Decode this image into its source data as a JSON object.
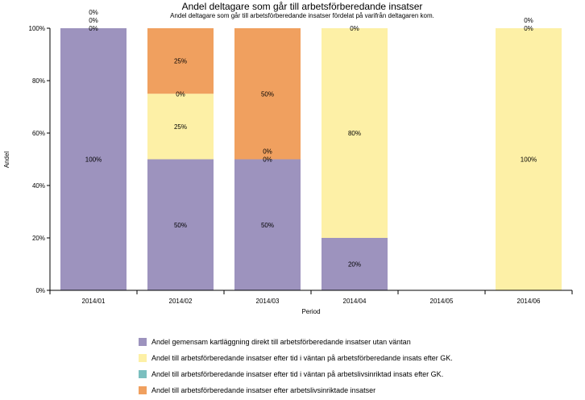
{
  "chart_data": {
    "type": "bar",
    "stacked": true,
    "title": "Andel deltagare som går till arbetsförberedande insatser",
    "subtitle": "Andel deltagare som går till arbetsförberedande insatser fördelat på varifrån deltagaren kom.",
    "xlabel": "Period",
    "ylabel": "Andel",
    "ylim": [
      0,
      100
    ],
    "y_ticks": [
      "0%",
      "20%",
      "40%",
      "60%",
      "80%",
      "100%"
    ],
    "categories": [
      "2014/01",
      "2014/02",
      "2014/03",
      "2014/04",
      "2014/05",
      "2014/06"
    ],
    "series": [
      {
        "name": "Andel gemensam kartläggning direkt till arbetsförberedande insatser utan väntan",
        "color": "#9d93be",
        "values": [
          100,
          50,
          50,
          20,
          null,
          0
        ],
        "labels": [
          "100%",
          "50%",
          "50%",
          "20%",
          "",
          ""
        ]
      },
      {
        "name": "Andel till arbetsförberedande insatser efter tid i väntan på arbetsförberedande insats efter GK.",
        "color": "#fdf0a6",
        "values": [
          0,
          25,
          0,
          80,
          null,
          100
        ],
        "labels": [
          "0%",
          "25%",
          "0%",
          "80%",
          "",
          "100%"
        ]
      },
      {
        "name": "Andel till arbetsförberedande insatser efter tid i väntan på arbetslivsinriktad insats efter GK.",
        "color": "#7bbfbf",
        "values": [
          0,
          0,
          0,
          0,
          null,
          0
        ],
        "labels": [
          "0%",
          "0%",
          "0%",
          "0%",
          "",
          "0%"
        ]
      },
      {
        "name": "Andel till arbetsförberedande insatser efter arbetslivsinriktade insatser",
        "color": "#f0a05f",
        "values": [
          0,
          25,
          50,
          0,
          null,
          0
        ],
        "labels": [
          "0%",
          "25%",
          "50%",
          "",
          "",
          "0%"
        ]
      }
    ],
    "grid": false,
    "legend_position": "bottom"
  }
}
